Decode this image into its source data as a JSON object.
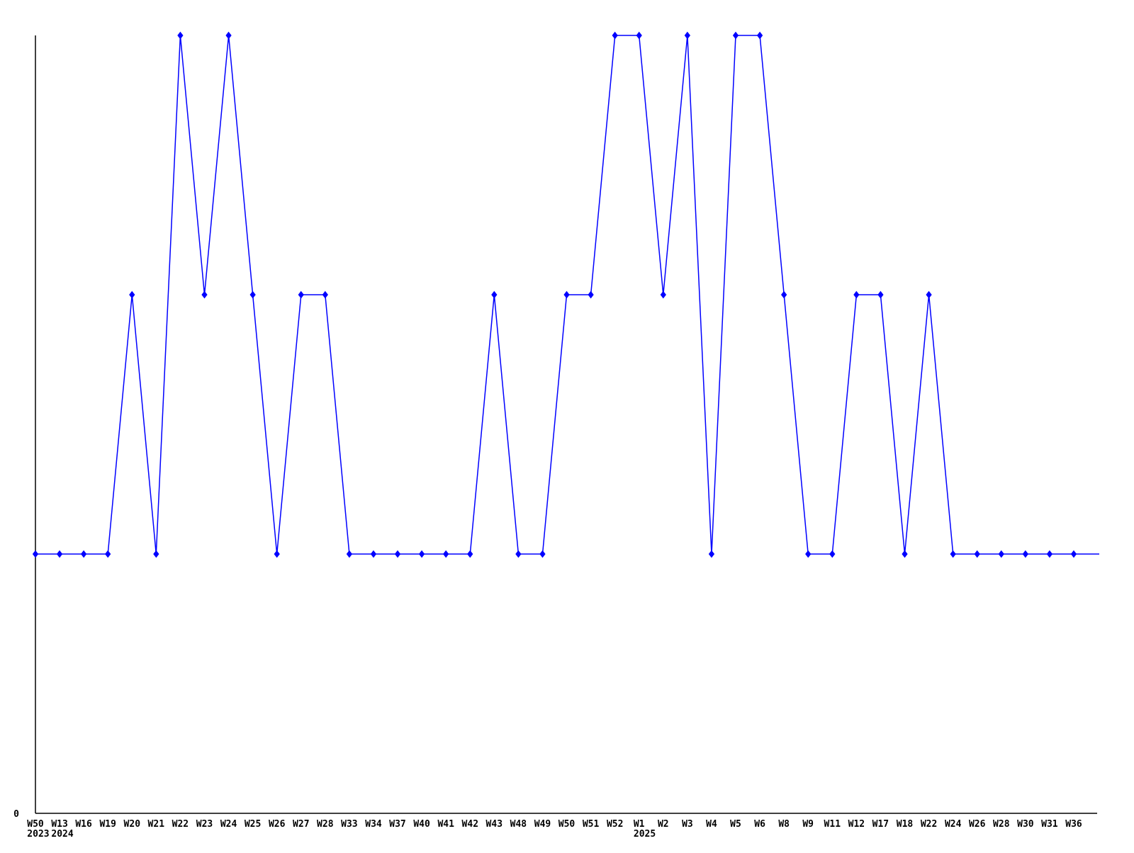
{
  "chart_data": {
    "type": "line",
    "title": "",
    "xlabel": "",
    "ylabel": "",
    "categories": [
      "W50",
      "W13",
      "W16",
      "W19",
      "W20",
      "W21",
      "W22",
      "W23",
      "W24",
      "W25",
      "W26",
      "W27",
      "W28",
      "W33",
      "W34",
      "W37",
      "W40",
      "W41",
      "W42",
      "W43",
      "W48",
      "W49",
      "W50",
      "W51",
      "W52",
      "W1",
      "W2",
      "W3",
      "W4",
      "W5",
      "W6",
      "W8",
      "W9",
      "W11",
      "W12",
      "W17",
      "W18",
      "W22",
      "W24",
      "W26",
      "W28",
      "W30",
      "W31",
      "W36"
    ],
    "values": [
      1,
      1,
      1,
      1,
      2,
      1,
      3,
      2,
      3,
      2,
      1,
      2,
      2,
      1,
      1,
      1,
      1,
      1,
      1,
      2,
      1,
      1,
      2,
      2,
      3,
      3,
      2,
      3,
      1,
      3,
      3,
      2,
      1,
      1,
      2,
      2,
      1,
      2,
      1,
      1,
      1,
      1,
      1,
      1
    ],
    "year_annotations": [
      {
        "category_index": 0,
        "label": "2023"
      },
      {
        "category_index": 1,
        "label": "2024"
      },
      {
        "category_index": 25,
        "label": "2025"
      }
    ],
    "y_axis": {
      "ylim": [
        0,
        3
      ],
      "visible_tick_labels": [
        "0"
      ],
      "zero_label": "0"
    },
    "grid": false,
    "legend": false,
    "marker": "diamond",
    "line_extends_past_last_point": true,
    "colors": {
      "line": "#0000ff",
      "marker": "#0000ff",
      "axis": "#000000",
      "text": "#000000",
      "background": "#ffffff"
    }
  }
}
